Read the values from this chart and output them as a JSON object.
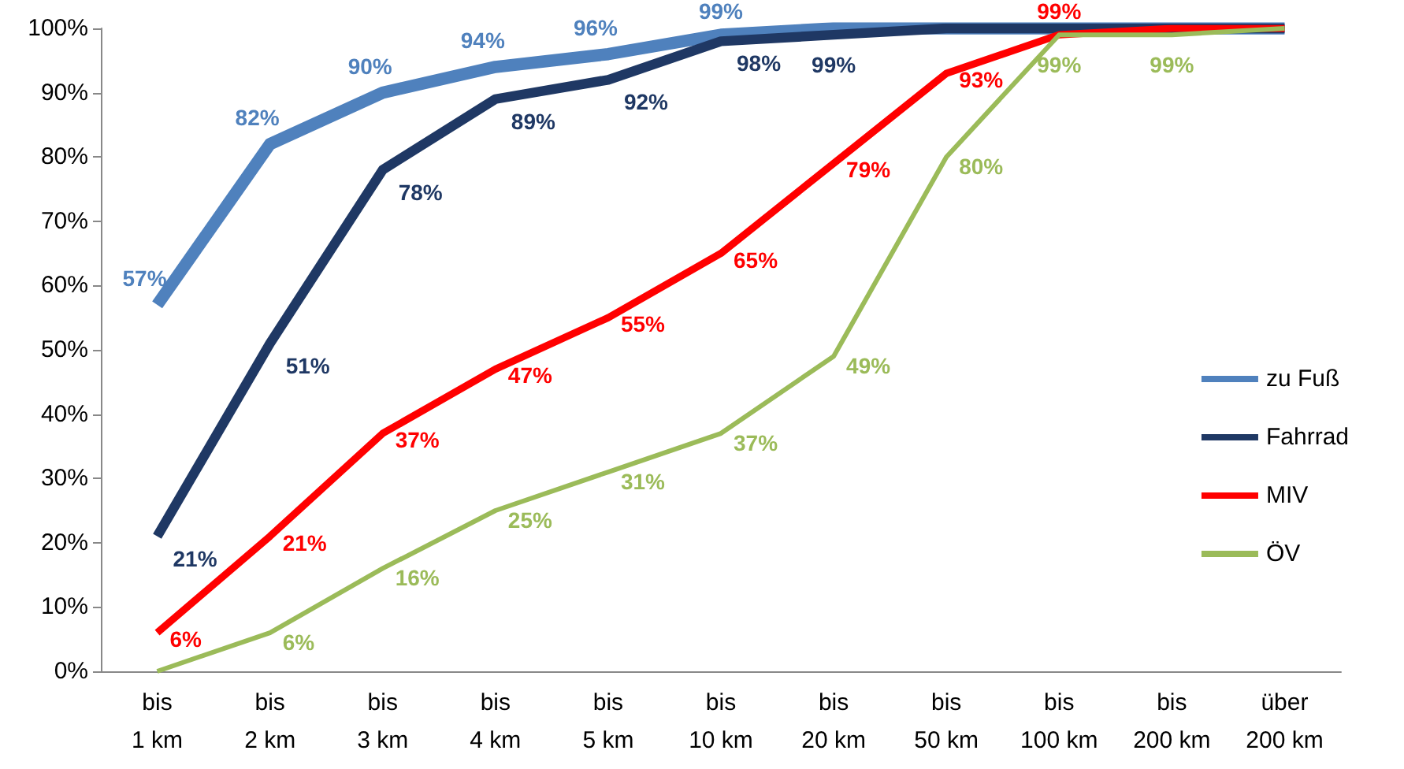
{
  "chart_data": {
    "type": "line",
    "categories": [
      "bis 1 km",
      "bis 2 km",
      "bis 3 km",
      "bis 4 km",
      "bis 5 km",
      "bis 10 km",
      "bis 20 km",
      "bis 50 km",
      "bis 100 km",
      "bis 200 km",
      "über 200 km"
    ],
    "series": [
      {
        "name": "zu Fuß",
        "color": "#4f81bd",
        "values": [
          57,
          82,
          90,
          94,
          96,
          99,
          100,
          100,
          100,
          100,
          100
        ],
        "value_labels": [
          "57%",
          "82%",
          "90%",
          "94%",
          "96%",
          "99%",
          null,
          null,
          null,
          null,
          null
        ]
      },
      {
        "name": "Fahrrad",
        "color": "#1f3864",
        "values": [
          21,
          51,
          78,
          89,
          92,
          98,
          99,
          100,
          100,
          100,
          100
        ],
        "value_labels": [
          "21%",
          "51%",
          "78%",
          "89%",
          "92%",
          "98%",
          "99%",
          null,
          null,
          null,
          null
        ]
      },
      {
        "name": "MIV",
        "color": "#ff0000",
        "values": [
          6,
          21,
          37,
          47,
          55,
          65,
          79,
          93,
          99,
          100,
          100
        ],
        "value_labels": [
          "6%",
          "21%",
          "37%",
          "47%",
          "55%",
          "65%",
          "79%",
          "93%",
          "99%",
          null,
          null
        ]
      },
      {
        "name": "ÖV",
        "color": "#9bbb59",
        "values": [
          0,
          6,
          16,
          25,
          31,
          37,
          49,
          80,
          99,
          99,
          100
        ],
        "value_labels": [
          null,
          "6%",
          "16%",
          "25%",
          "31%",
          "37%",
          "49%",
          "80%",
          "99%",
          "99%",
          null
        ]
      }
    ],
    "ylim": [
      0,
      100
    ],
    "yticks": [
      {
        "value": 0,
        "label": "0%"
      },
      {
        "value": 10,
        "label": "10%"
      },
      {
        "value": 20,
        "label": "20%"
      },
      {
        "value": 30,
        "label": "30%"
      },
      {
        "value": 40,
        "label": "40%"
      },
      {
        "value": 50,
        "label": "50%"
      },
      {
        "value": 60,
        "label": "60%"
      },
      {
        "value": 70,
        "label": "70%"
      },
      {
        "value": 80,
        "label": "80%"
      },
      {
        "value": 90,
        "label": "90%"
      },
      {
        "value": 100,
        "label": "100%"
      }
    ],
    "grid": false,
    "legend": "right",
    "marker": "none",
    "line_style": "solid"
  }
}
